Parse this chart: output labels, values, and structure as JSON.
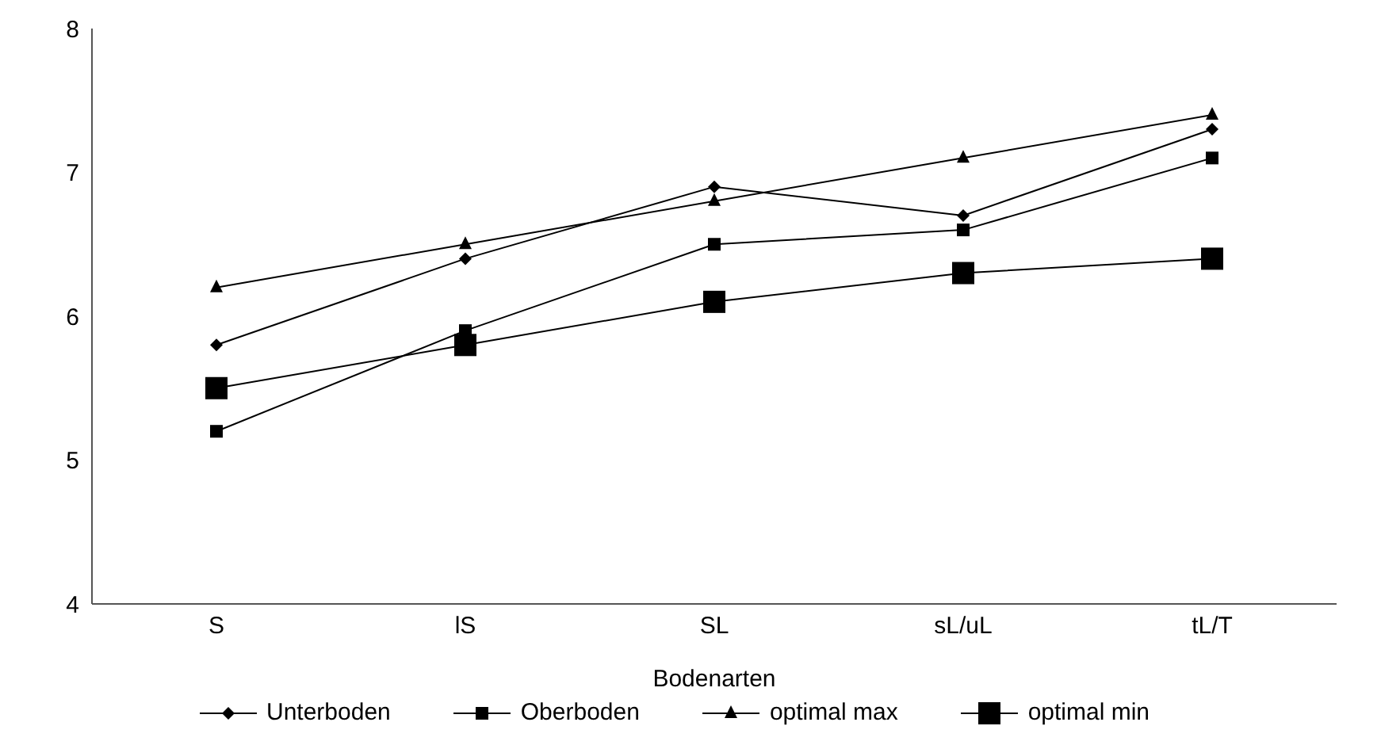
{
  "chart_data": {
    "type": "line",
    "xlabel": "Bodenarten",
    "categories": [
      "S",
      "lS",
      "SL",
      "sL/uL",
      "tL/T"
    ],
    "series": [
      {
        "name": "Unterboden",
        "color": "#000000",
        "marker": "diamond",
        "values": [
          5.8,
          6.4,
          6.9,
          6.7,
          7.3
        ]
      },
      {
        "name": "Oberboden",
        "color": "#000000",
        "marker": "square",
        "values": [
          5.2,
          5.9,
          6.5,
          6.6,
          7.1
        ]
      },
      {
        "name": "optimal max",
        "color": "#000000",
        "marker": "triangle",
        "values": [
          6.2,
          6.5,
          6.8,
          7.1,
          7.4
        ]
      },
      {
        "name": "optimal min",
        "color": "#000000",
        "marker": "square",
        "values": [
          5.5,
          5.8,
          6.1,
          6.3,
          6.4
        ]
      }
    ],
    "ylim": [
      4,
      8
    ],
    "yticks": [
      4,
      5,
      6,
      7,
      8
    ],
    "grid": false,
    "legend": "bottom"
  }
}
